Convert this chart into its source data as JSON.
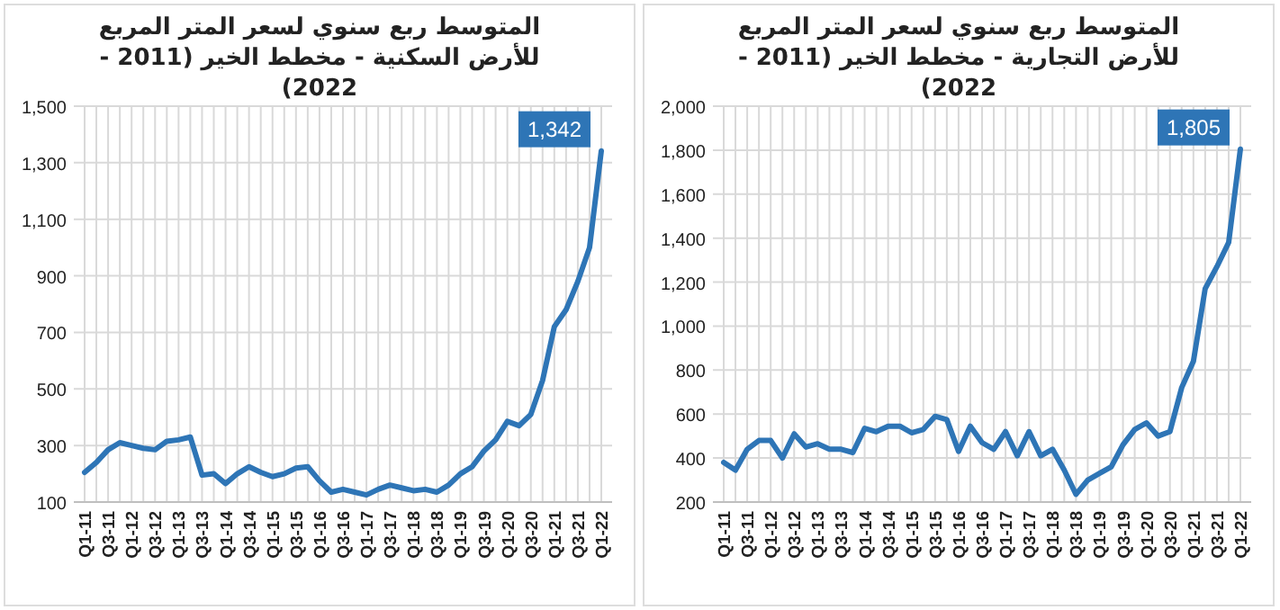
{
  "chart_data": [
    {
      "type": "line",
      "title": "المتوسط ربع سنوي لسعر المتر المربع للأرض السكنية - مخطط الخير (2011 - 2022)",
      "categories": [
        "Q1-11",
        null,
        "Q3-11",
        null,
        "Q1-12",
        null,
        "Q3-12",
        null,
        "Q1-13",
        null,
        "Q3-13",
        null,
        "Q1-14",
        null,
        "Q3-14",
        null,
        "Q1-15",
        null,
        "Q3-15",
        null,
        "Q1-16",
        null,
        "Q3-16",
        null,
        "Q1-17",
        null,
        "Q3-17",
        null,
        "Q1-18",
        null,
        "Q3-18",
        null,
        "Q1-19",
        null,
        "Q3-19",
        null,
        "Q1-20",
        null,
        "Q3-20",
        null,
        "Q1-21",
        null,
        "Q3-21",
        null,
        "Q1-22"
      ],
      "series": [
        {
          "color": "#2e75b6",
          "values": [
            205,
            240,
            285,
            310,
            300,
            290,
            285,
            315,
            320,
            330,
            195,
            200,
            165,
            200,
            225,
            205,
            190,
            200,
            220,
            225,
            175,
            135,
            145,
            135,
            125,
            145,
            160,
            150,
            140,
            145,
            135,
            160,
            200,
            225,
            280,
            320,
            385,
            370,
            410,
            530,
            720,
            780,
            880,
            1000,
            1342
          ],
          "value_labels": [
            null,
            null,
            null,
            null,
            null,
            null,
            null,
            null,
            null,
            null,
            null,
            null,
            null,
            null,
            null,
            null,
            null,
            null,
            null,
            null,
            null,
            null,
            null,
            null,
            null,
            null,
            null,
            null,
            null,
            null,
            null,
            null,
            null,
            null,
            null,
            null,
            null,
            null,
            null,
            null,
            null,
            null,
            null,
            null,
            "1,342"
          ]
        }
      ],
      "ylim": [
        100,
        1500
      ],
      "yticks": [
        100,
        300,
        500,
        700,
        900,
        {
          "value": 1100,
          "label": "1,100"
        },
        {
          "value": 1300,
          "label": "1,300"
        },
        {
          "value": 1500,
          "label": "1,500"
        }
      ],
      "grid": true
    },
    {
      "type": "line",
      "title": "المتوسط ربع سنوي لسعر المتر المربع للأرض التجارية - مخطط الخير (2011 - 2022)",
      "categories": [
        "Q1-11",
        null,
        "Q3-11",
        null,
        "Q1-12",
        null,
        "Q3-12",
        null,
        "Q1-13",
        null,
        "Q3-13",
        null,
        "Q1-14",
        null,
        "Q3-14",
        null,
        "Q1-15",
        null,
        "Q3-15",
        null,
        "Q1-16",
        null,
        "Q3-16",
        null,
        "Q1-17",
        null,
        "Q3-17",
        null,
        "Q1-18",
        null,
        "Q3-18",
        null,
        "Q1-19",
        null,
        "Q3-19",
        null,
        "Q1-20",
        null,
        "Q3-20",
        null,
        "Q1-21",
        null,
        "Q3-21",
        null,
        "Q1-22"
      ],
      "series": [
        {
          "color": "#2e75b6",
          "values": [
            380,
            345,
            440,
            480,
            480,
            400,
            510,
            450,
            465,
            440,
            440,
            425,
            535,
            520,
            545,
            545,
            515,
            530,
            590,
            575,
            430,
            545,
            470,
            440,
            520,
            410,
            520,
            410,
            440,
            345,
            235,
            300,
            330,
            360,
            460,
            530,
            560,
            500,
            520,
            720,
            840,
            1170,
            1270,
            1380,
            1805
          ],
          "value_labels": [
            null,
            null,
            null,
            null,
            null,
            null,
            null,
            null,
            null,
            null,
            null,
            null,
            null,
            null,
            null,
            null,
            null,
            null,
            null,
            null,
            null,
            null,
            null,
            null,
            null,
            null,
            null,
            null,
            null,
            null,
            null,
            null,
            null,
            null,
            null,
            null,
            null,
            null,
            null,
            null,
            null,
            null,
            null,
            null,
            "1,805"
          ]
        }
      ],
      "ylim": [
        200,
        2000
      ],
      "yticks": [
        200,
        400,
        600,
        800,
        {
          "value": 1000,
          "label": "1,000"
        },
        {
          "value": 1200,
          "label": "1,200"
        },
        {
          "value": 1400,
          "label": "1,400"
        },
        {
          "value": 1600,
          "label": "1,600"
        },
        {
          "value": 1800,
          "label": "1,800"
        },
        {
          "value": 2000,
          "label": "2,000"
        }
      ],
      "grid": true
    }
  ]
}
